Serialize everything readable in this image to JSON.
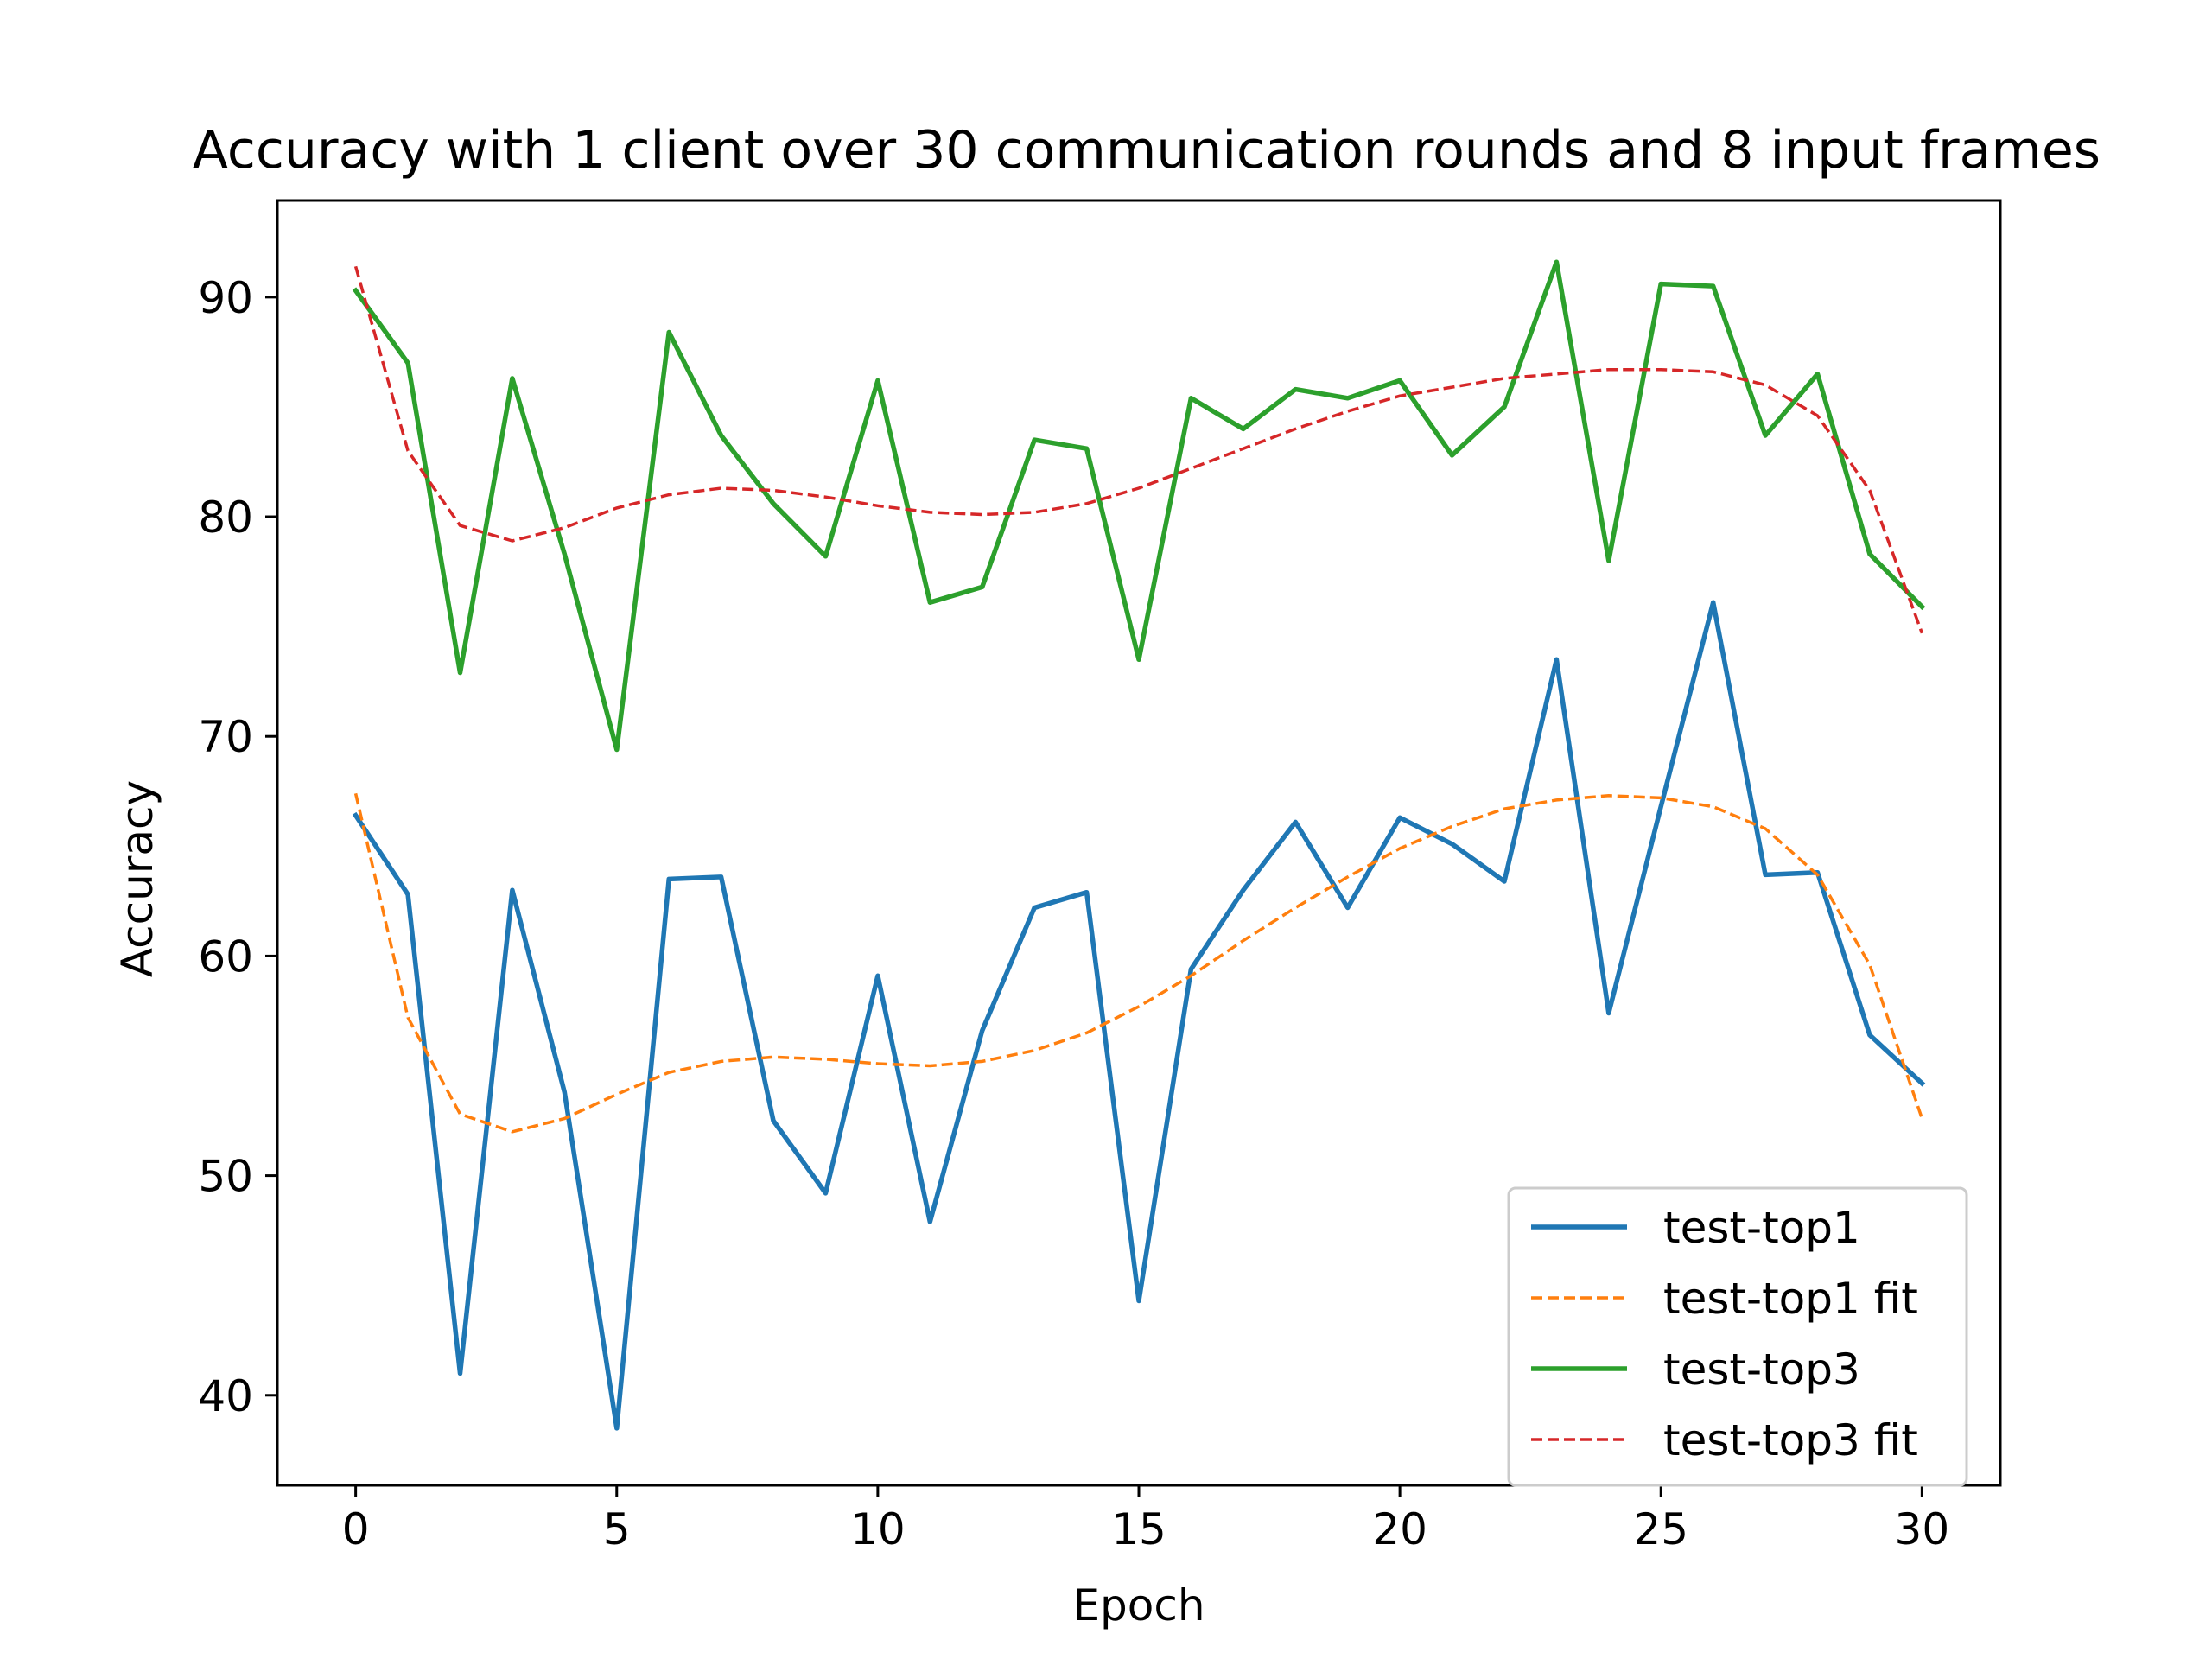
{
  "chart_data": {
    "type": "line",
    "title": "Accuracy with 1 client over 30 communication rounds and 8 input frames",
    "xlabel": "Epoch",
    "ylabel": "Accuracy",
    "xlim": [
      -1.5,
      31.5
    ],
    "ylim": [
      35.9,
      94.4
    ],
    "xticks": [
      0,
      5,
      10,
      15,
      20,
      25,
      30
    ],
    "yticks": [
      40,
      50,
      60,
      70,
      80,
      90
    ],
    "grid": false,
    "legend_position": "bottom-right",
    "x": [
      0,
      1,
      2,
      3,
      4,
      5,
      6,
      7,
      8,
      9,
      10,
      11,
      12,
      13,
      14,
      15,
      16,
      17,
      18,
      19,
      20,
      21,
      22,
      23,
      24,
      25,
      26,
      27,
      28,
      29,
      30
    ],
    "series": [
      {
        "name": "test-top1",
        "style": "solid",
        "color": "#1f77b4",
        "values": [
          66.4,
          62.8,
          41.0,
          63.0,
          53.8,
          38.5,
          63.5,
          63.6,
          52.5,
          49.2,
          59.1,
          47.9,
          56.6,
          62.2,
          62.9,
          44.3,
          59.4,
          63.0,
          66.1,
          62.2,
          66.3,
          65.1,
          63.4,
          73.5,
          57.4,
          66.8,
          76.1,
          63.7,
          63.8,
          56.4,
          54.2
        ]
      },
      {
        "name": "test-top1 fit",
        "style": "dashed",
        "color": "#ff7f0e",
        "values": [
          67.4,
          57.2,
          52.8,
          52.0,
          52.6,
          53.7,
          54.7,
          55.2,
          55.4,
          55.3,
          55.1,
          55.0,
          55.2,
          55.7,
          56.5,
          57.7,
          59.1,
          60.7,
          62.2,
          63.6,
          64.9,
          65.9,
          66.7,
          67.1,
          67.3,
          67.2,
          66.8,
          65.8,
          63.7,
          59.6,
          52.6
        ]
      },
      {
        "name": "test-top3",
        "style": "solid",
        "color": "#2ca02c",
        "values": [
          90.3,
          87.0,
          72.9,
          86.3,
          78.3,
          69.4,
          88.4,
          83.7,
          80.6,
          78.2,
          86.2,
          76.1,
          76.8,
          83.5,
          83.1,
          73.5,
          85.4,
          84.0,
          85.8,
          85.4,
          86.2,
          82.8,
          85.0,
          91.6,
          78.0,
          90.6,
          90.5,
          83.7,
          86.5,
          78.3,
          75.9
        ]
      },
      {
        "name": "test-top3 fit",
        "style": "dashed",
        "color": "#d62728",
        "values": [
          91.4,
          83.0,
          79.6,
          78.9,
          79.5,
          80.4,
          81.0,
          81.3,
          81.2,
          80.9,
          80.5,
          80.2,
          80.1,
          80.2,
          80.6,
          81.3,
          82.2,
          83.1,
          84.0,
          84.8,
          85.5,
          85.9,
          86.3,
          86.5,
          86.7,
          86.7,
          86.6,
          86.0,
          84.6,
          81.2,
          74.7
        ]
      }
    ]
  }
}
